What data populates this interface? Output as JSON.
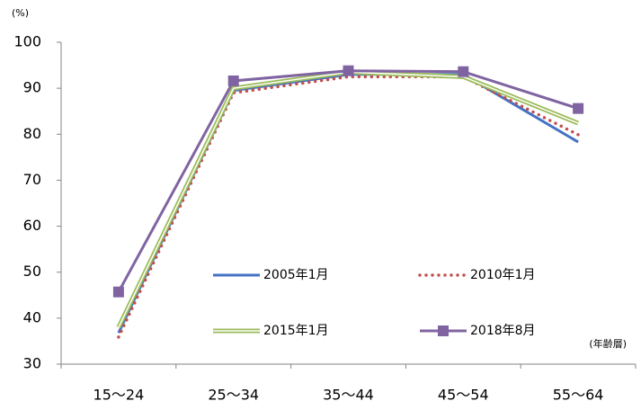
{
  "chart_data": {
    "type": "line",
    "y_unit": "(%)",
    "x_label": "(年齢層)",
    "categories": [
      "15〜24",
      "25〜34",
      "35〜44",
      "45〜54",
      "55〜64"
    ],
    "ylim": [
      30,
      100
    ],
    "yticks": [
      30,
      40,
      50,
      60,
      70,
      80,
      90,
      100
    ],
    "series": [
      {
        "name": "2005年1月",
        "color": "#4472c4",
        "style": "solid",
        "values": [
          36.8,
          89.5,
          93,
          93,
          78.3
        ]
      },
      {
        "name": "2010年1月",
        "color": "#c0504d",
        "style": "dotted",
        "values": [
          35.9,
          89,
          92.5,
          92.5,
          79.9
        ]
      },
      {
        "name": "2015年1月",
        "color": "#9bbb59",
        "style": "double",
        "values": [
          38,
          90,
          93.5,
          92.5,
          82.4
        ]
      },
      {
        "name": "2018年8月",
        "color": "#8064a2",
        "style": "solid",
        "marker": "square",
        "values": [
          45.7,
          91.6,
          93.8,
          93.6,
          85.6
        ]
      }
    ]
  }
}
